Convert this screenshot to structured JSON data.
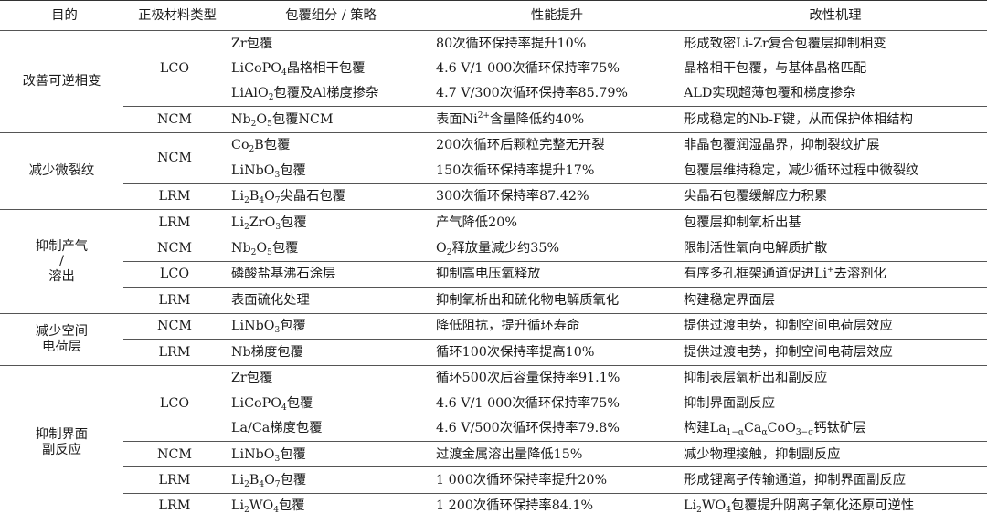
{
  "headers": [
    "目的",
    "正极材料类型",
    "包覆组分 / 策略",
    "性能提升",
    "改性机理"
  ],
  "groups": [
    {
      "purpose": "改善可逆相变",
      "subgroups": [
        {
          "material": "LCO",
          "rows": [
            {
              "coating": [
                "Zr包覆"
              ],
              "performance": [
                "80次循环保持率提升10%"
              ],
              "mechanism": [
                "形成致密Li-Zr复合包覆层抑制相变"
              ]
            },
            {
              "coating": [
                "LiCoPO",
                {
                  "sub": "4"
                },
                "晶格相干包覆"
              ],
              "performance": [
                "4.6 V/1 000次循环保持率75%"
              ],
              "mechanism": [
                "晶格相干包覆，与基体晶格匹配"
              ]
            },
            {
              "coating": [
                "LiAlO",
                {
                  "sub": "2"
                },
                "包覆及Al梯度掺杂"
              ],
              "performance": [
                "4.7 V/300次循环保持率85.79%"
              ],
              "mechanism": [
                "ALD实现超薄包覆和梯度掺杂"
              ]
            }
          ]
        },
        {
          "material": "NCM",
          "rows": [
            {
              "coating": [
                "Nb",
                {
                  "sub": "2"
                },
                "O",
                {
                  "sub": "5"
                },
                "包覆NCM"
              ],
              "performance": [
                "表面Ni",
                {
                  "sup": "2+"
                },
                "含量降低约40%"
              ],
              "mechanism": [
                "形成稳定的Nb-F键，从而保护体相结构"
              ]
            }
          ]
        }
      ]
    },
    {
      "purpose": "减少微裂纹",
      "subgroups": [
        {
          "material": "NCM",
          "rows": [
            {
              "coating": [
                "Co",
                {
                  "sub": "2"
                },
                "B包覆"
              ],
              "performance": [
                "200次循环后颗粒完整无开裂"
              ],
              "mechanism": [
                "非晶包覆润湿晶界，抑制裂纹扩展"
              ]
            },
            {
              "coating": [
                "LiNbO",
                {
                  "sub": "3"
                },
                "包覆"
              ],
              "performance": [
                "150次循环保持率提升17%"
              ],
              "mechanism": [
                "包覆层维持稳定，减少循环过程中微裂纹"
              ]
            }
          ]
        },
        {
          "material": "LRM",
          "rows": [
            {
              "coating": [
                "Li",
                {
                  "sub": "2"
                },
                "B",
                {
                  "sub": "4"
                },
                "O",
                {
                  "sub": "7"
                },
                "尖晶石包覆"
              ],
              "performance": [
                "300次循环保持率87.42%"
              ],
              "mechanism": [
                "尖晶石包覆缓解应力积累"
              ]
            }
          ]
        }
      ]
    },
    {
      "purpose": "抑制产气 / 溶出",
      "subgroups": [
        {
          "material": "LRM",
          "rows": [
            {
              "coating": [
                "Li",
                {
                  "sub": "2"
                },
                "ZrO",
                {
                  "sub": "3"
                },
                "包覆"
              ],
              "performance": [
                "产气降低20%"
              ],
              "mechanism": [
                "包覆层抑制氧析出基"
              ]
            }
          ]
        },
        {
          "material": "NCM",
          "rows": [
            {
              "coating": [
                "Nb",
                {
                  "sub": "2"
                },
                "O",
                {
                  "sub": "5"
                },
                "包覆"
              ],
              "performance": [
                "O",
                {
                  "sub": "2"
                },
                "释放量减少约35%"
              ],
              "mechanism": [
                "限制活性氧向电解质扩散"
              ]
            }
          ]
        },
        {
          "material": "LCO",
          "rows": [
            {
              "coating": [
                "磷酸盐基沸石涂层"
              ],
              "performance": [
                "抑制高电压氧释放"
              ],
              "mechanism": [
                "有序多孔框架通道促进Li",
                {
                  "sup": "+"
                },
                "去溶剂化"
              ]
            }
          ]
        },
        {
          "material": "LRM",
          "rows": [
            {
              "coating": [
                "表面硫化处理"
              ],
              "performance": [
                "抑制氧析出和硫化物电解质氧化"
              ],
              "mechanism": [
                "构建稳定界面层"
              ]
            }
          ]
        }
      ]
    },
    {
      "purpose": "减少空间 电荷层",
      "subgroups": [
        {
          "material": "NCM",
          "rows": [
            {
              "coating": [
                "LiNbO",
                {
                  "sub": "3"
                },
                "包覆"
              ],
              "performance": [
                "降低阻抗，提升循环寿命"
              ],
              "mechanism": [
                "提供过渡电势，抑制空间电荷层效应"
              ]
            }
          ]
        },
        {
          "material": "LRM",
          "rows": [
            {
              "coating": [
                "Nb梯度包覆"
              ],
              "performance": [
                "循环100次保持率提高10%"
              ],
              "mechanism": [
                "提供过渡电势，抑制空间电荷层效应"
              ]
            }
          ]
        }
      ]
    },
    {
      "purpose": "抑制界面 副反应",
      "subgroups": [
        {
          "material": "LCO",
          "rows": [
            {
              "coating": [
                "Zr包覆"
              ],
              "performance": [
                "循环500次后容量保持率91.1%"
              ],
              "mechanism": [
                "抑制表层氧析出和副反应"
              ]
            },
            {
              "coating": [
                "LiCoPO",
                {
                  "sub": "4"
                },
                "包覆"
              ],
              "performance": [
                "4.6 V/1 000次循环保持率75%"
              ],
              "mechanism": [
                "抑制界面副反应"
              ]
            },
            {
              "coating": [
                "La/Ca梯度包覆"
              ],
              "performance": [
                "4.6 V/500次循环保持率79.8%"
              ],
              "mechanism": [
                "构建La",
                {
                  "sub": "1−α"
                },
                "Ca",
                {
                  "sub": "α"
                },
                "CoO",
                {
                  "sub": "3−σ"
                },
                "钙钛矿层"
              ]
            }
          ]
        },
        {
          "material": "NCM",
          "rows": [
            {
              "coating": [
                "LiNbO",
                {
                  "sub": "3"
                },
                "包覆"
              ],
              "performance": [
                "过渡金属溶出量降低15%"
              ],
              "mechanism": [
                "减少物理接触，抑制副反应"
              ]
            }
          ]
        },
        {
          "material": "LRM",
          "rows": [
            {
              "coating": [
                "Li",
                {
                  "sub": "2"
                },
                "B",
                {
                  "sub": "4"
                },
                "O",
                {
                  "sub": "7"
                },
                "包覆"
              ],
              "performance": [
                "1 000次循环保持率提升20%"
              ],
              "mechanism": [
                "形成锂离子传输通道，抑制界面副反应"
              ]
            }
          ]
        },
        {
          "material": "LRM",
          "rows": [
            {
              "coating": [
                "Li",
                {
                  "sub": "2"
                },
                "WO",
                {
                  "sub": "4"
                },
                "包覆"
              ],
              "performance": [
                "1 200次循环保持率84.1%"
              ],
              "mechanism": [
                "Li",
                {
                  "sub": "2"
                },
                "WO",
                {
                  "sub": "4"
                },
                "包覆提升阴离子氧化还原可逆性"
              ]
            }
          ]
        }
      ]
    }
  ]
}
